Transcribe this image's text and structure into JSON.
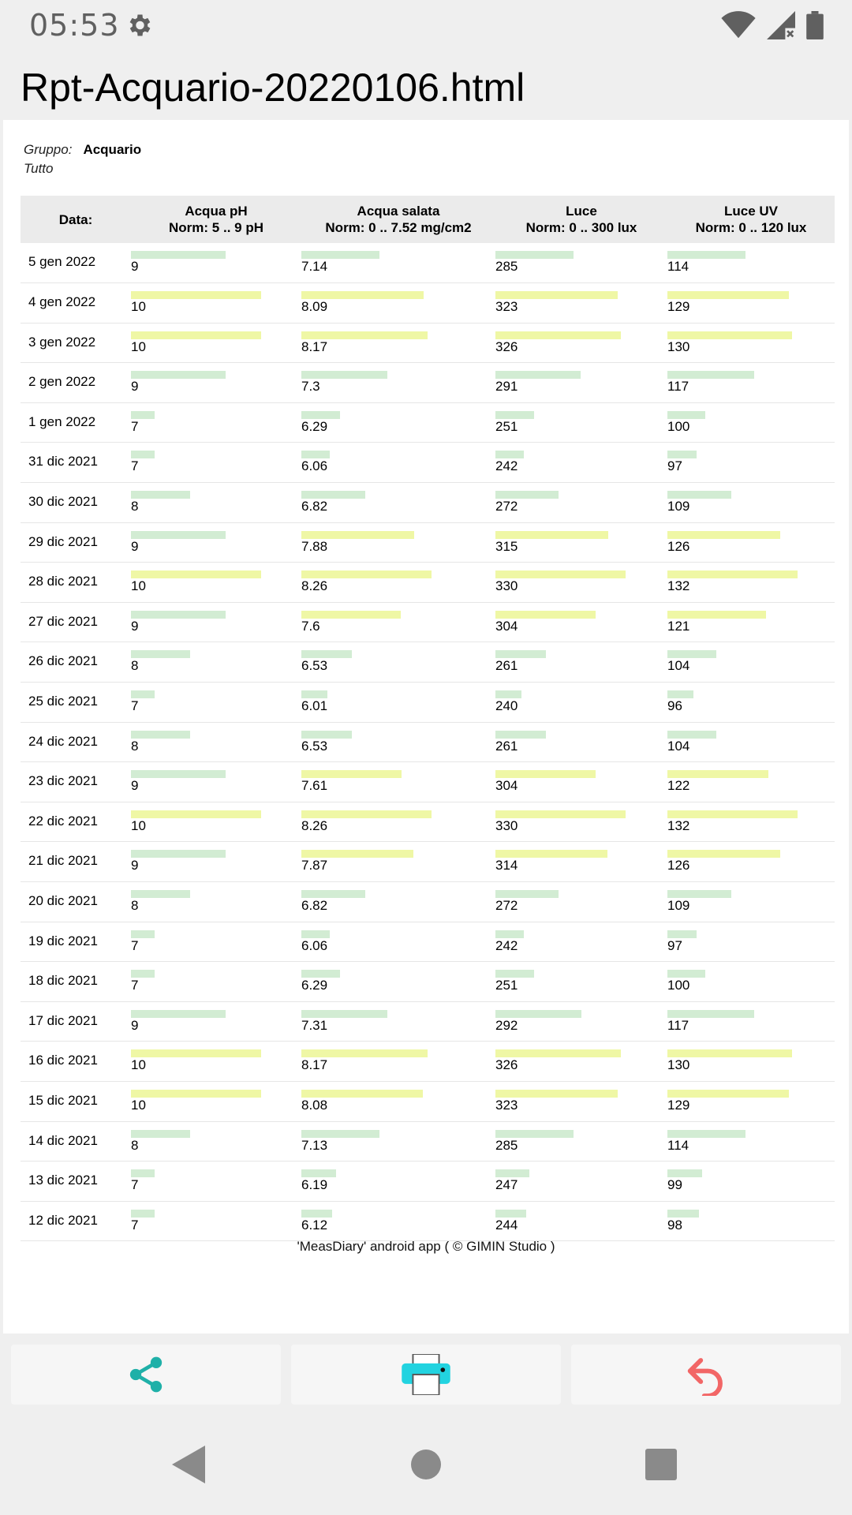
{
  "status": {
    "time": "05:53"
  },
  "app": {
    "title": "Rpt-Acquario-20220106.html"
  },
  "meta": {
    "group_label": "Gruppo:",
    "group_value": "Acquario",
    "filter_label": "Tutto"
  },
  "table": {
    "headers": [
      {
        "name": "Data:",
        "norm": ""
      },
      {
        "name": "Acqua pH",
        "norm": "Norm: 5 .. 9 pH"
      },
      {
        "name": "Acqua salata",
        "norm": "Norm: 0 .. 7.52 mg/cm2"
      },
      {
        "name": "Luce",
        "norm": "Norm: 0 .. 300 lux"
      },
      {
        "name": "Luce UV",
        "norm": "Norm: 0 .. 120 lux"
      }
    ],
    "rows": [
      {
        "date": "5 gen 2022",
        "v": [
          "9",
          "7.14",
          "285",
          "114"
        ]
      },
      {
        "date": "4 gen 2022",
        "v": [
          "10",
          "8.09",
          "323",
          "129"
        ]
      },
      {
        "date": "3 gen 2022",
        "v": [
          "10",
          "8.17",
          "326",
          "130"
        ]
      },
      {
        "date": "2 gen 2022",
        "v": [
          "9",
          "7.3",
          "291",
          "117"
        ]
      },
      {
        "date": "1 gen 2022",
        "v": [
          "7",
          "6.29",
          "251",
          "100"
        ]
      },
      {
        "date": "31 dic 2021",
        "v": [
          "7",
          "6.06",
          "242",
          "97"
        ]
      },
      {
        "date": "30 dic 2021",
        "v": [
          "8",
          "6.82",
          "272",
          "109"
        ]
      },
      {
        "date": "29 dic 2021",
        "v": [
          "9",
          "7.88",
          "315",
          "126"
        ]
      },
      {
        "date": "28 dic 2021",
        "v": [
          "10",
          "8.26",
          "330",
          "132"
        ]
      },
      {
        "date": "27 dic 2021",
        "v": [
          "9",
          "7.6",
          "304",
          "121"
        ]
      },
      {
        "date": "26 dic 2021",
        "v": [
          "8",
          "6.53",
          "261",
          "104"
        ]
      },
      {
        "date": "25 dic 2021",
        "v": [
          "7",
          "6.01",
          "240",
          "96"
        ]
      },
      {
        "date": "24 dic 2021",
        "v": [
          "8",
          "6.53",
          "261",
          "104"
        ]
      },
      {
        "date": "23 dic 2021",
        "v": [
          "9",
          "7.61",
          "304",
          "122"
        ]
      },
      {
        "date": "22 dic 2021",
        "v": [
          "10",
          "8.26",
          "330",
          "132"
        ]
      },
      {
        "date": "21 dic 2021",
        "v": [
          "9",
          "7.87",
          "314",
          "126"
        ]
      },
      {
        "date": "20 dic 2021",
        "v": [
          "8",
          "6.82",
          "272",
          "109"
        ]
      },
      {
        "date": "19 dic 2021",
        "v": [
          "7",
          "6.06",
          "242",
          "97"
        ]
      },
      {
        "date": "18 dic 2021",
        "v": [
          "7",
          "6.29",
          "251",
          "100"
        ]
      },
      {
        "date": "17 dic 2021",
        "v": [
          "9",
          "7.31",
          "292",
          "117"
        ]
      },
      {
        "date": "16 dic 2021",
        "v": [
          "10",
          "8.17",
          "326",
          "130"
        ]
      },
      {
        "date": "15 dic 2021",
        "v": [
          "10",
          "8.08",
          "323",
          "129"
        ]
      },
      {
        "date": "14 dic 2021",
        "v": [
          "8",
          "7.13",
          "285",
          "114"
        ]
      },
      {
        "date": "13 dic 2021",
        "v": [
          "7",
          "6.19",
          "247",
          "99"
        ]
      },
      {
        "date": "12 dic 2021",
        "v": [
          "7",
          "6.12",
          "244",
          "98"
        ]
      }
    ]
  },
  "footer": "'MeasDiary' android app ( © GIMIN Studio )",
  "colors": {
    "bar_normal": "#d2ecd3",
    "bar_over": "#eff7a5",
    "share": "#1fb0a8",
    "print": "#22d3e0",
    "back": "#f26666"
  },
  "icons": {
    "share": "share-icon",
    "print": "print-icon",
    "back": "undo-arrow-icon",
    "settings": "gear-icon",
    "wifi": "wifi-icon",
    "signal": "signal-icon",
    "battery": "battery-icon"
  }
}
